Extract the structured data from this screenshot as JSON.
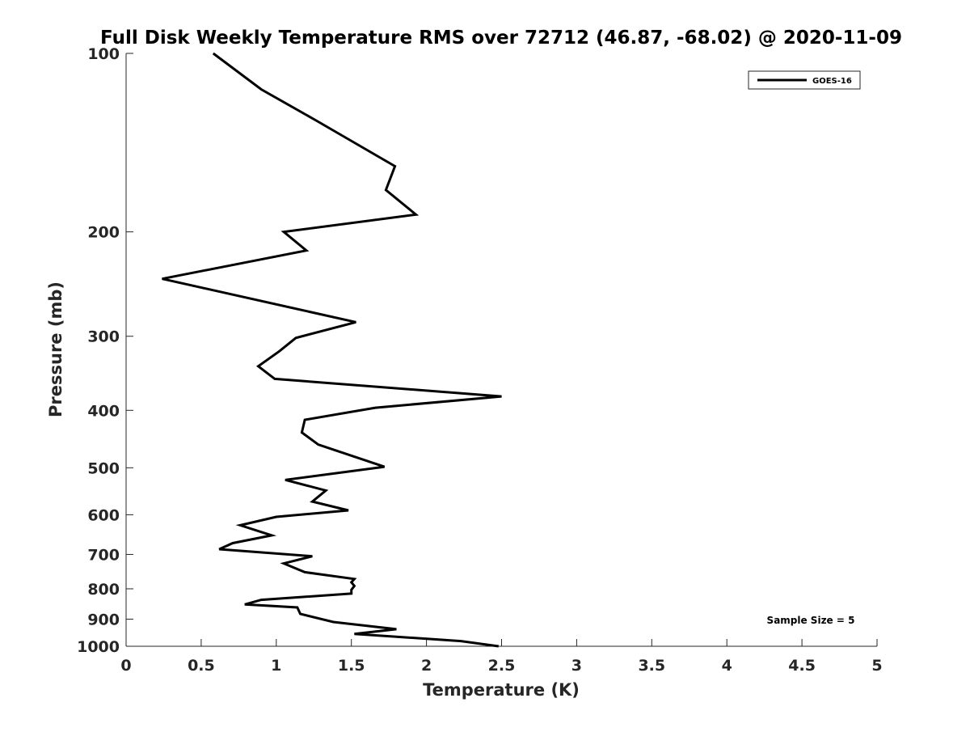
{
  "chart_data": {
    "type": "line",
    "title": "Full Disk Weekly Temperature RMS over 72712 (46.87, -68.02) @ 2020-11-09",
    "xlabel": "Temperature (K)",
    "ylabel": "Pressure (mb)",
    "xlim": [
      0,
      5
    ],
    "ylim": [
      100,
      1000
    ],
    "y_scale": "log",
    "y_reversed": true,
    "grid": false,
    "legend_position": "top-right",
    "x_ticks": [
      "0",
      "0.5",
      "1",
      "1.5",
      "2",
      "2.5",
      "3",
      "3.5",
      "4",
      "4.5",
      "5"
    ],
    "y_ticks": [
      "100",
      "200",
      "300",
      "400",
      "500",
      "600",
      "700",
      "800",
      "900",
      "1000"
    ],
    "annotation": "Sample Size = 5",
    "series": [
      {
        "name": "GOES-16",
        "color": "#000000",
        "points": [
          [
            0.58,
            100
          ],
          [
            0.9,
            115
          ],
          [
            1.27,
            130
          ],
          [
            1.79,
            155
          ],
          [
            1.73,
            170
          ],
          [
            1.93,
            187
          ],
          [
            1.05,
            200
          ],
          [
            1.2,
            215
          ],
          [
            0.24,
            240
          ],
          [
            1.53,
            284
          ],
          [
            1.13,
            302
          ],
          [
            1.02,
            318
          ],
          [
            0.88,
            337
          ],
          [
            0.99,
            354
          ],
          [
            2.5,
            379
          ],
          [
            1.66,
            396
          ],
          [
            1.19,
            415
          ],
          [
            1.17,
            436
          ],
          [
            1.28,
            457
          ],
          [
            1.72,
            498
          ],
          [
            1.06,
            524
          ],
          [
            1.33,
            546
          ],
          [
            1.24,
            570
          ],
          [
            1.48,
            590
          ],
          [
            1.0,
            605
          ],
          [
            0.76,
            625
          ],
          [
            0.97,
            650
          ],
          [
            0.71,
            670
          ],
          [
            0.62,
            686
          ],
          [
            1.24,
            705
          ],
          [
            1.05,
            725
          ],
          [
            1.19,
            750
          ],
          [
            1.52,
            770
          ],
          [
            1.5,
            780
          ],
          [
            1.52,
            791
          ],
          [
            1.5,
            803
          ],
          [
            1.5,
            815
          ],
          [
            0.9,
            835
          ],
          [
            0.79,
            850
          ],
          [
            1.14,
            860
          ],
          [
            1.16,
            882
          ],
          [
            1.38,
            910
          ],
          [
            1.8,
            936
          ],
          [
            1.52,
            953
          ],
          [
            2.23,
            980
          ],
          [
            2.48,
            1000
          ]
        ]
      }
    ]
  }
}
